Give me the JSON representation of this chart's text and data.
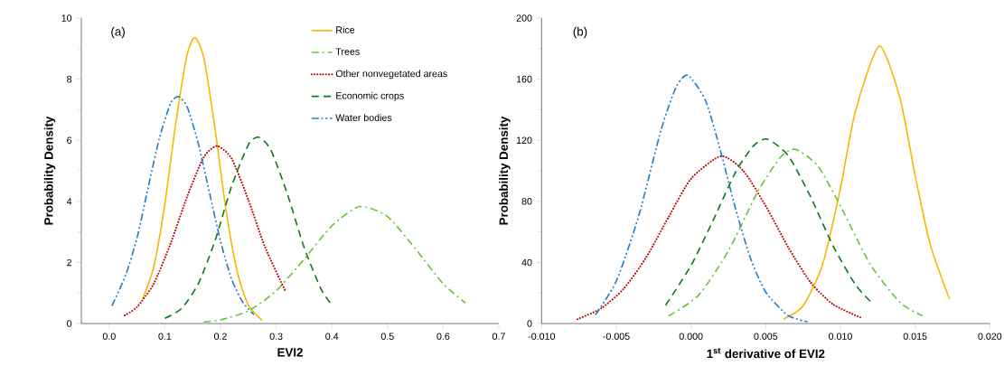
{
  "chart_data": [
    {
      "type": "line",
      "annotations": [
        "(a)"
      ],
      "xlabel": "EVI2",
      "ylabel": "Probability Density",
      "legend": "top right",
      "xlim": [
        -0.05,
        0.7
      ],
      "ylim": [
        0,
        10
      ],
      "xticks": [
        {
          "value": 0,
          "label": "0.0"
        },
        0.1,
        0.2,
        0.3,
        0.4,
        0.5,
        0.6,
        0.7
      ],
      "yticks": [
        0,
        2,
        4,
        6,
        8,
        10
      ],
      "series": [
        {
          "name": "Rice",
          "color": "#f5b800",
          "line_style": "solid",
          "x": [
            0.06,
            0.08,
            0.1,
            0.12,
            0.14,
            0.154,
            0.17,
            0.19,
            0.21,
            0.23,
            0.25,
            0.275
          ],
          "values": [
            0.8,
            1.85,
            3.9,
            6.6,
            8.8,
            9.36,
            8.7,
            6.4,
            3.7,
            1.7,
            0.6,
            0.1
          ]
        },
        {
          "name": "Trees",
          "color": "#66c42e",
          "line_style": "dashdot",
          "x": [
            0.17,
            0.2,
            0.25,
            0.3,
            0.35,
            0.4,
            0.45,
            0.5,
            0.55,
            0.6,
            0.64
          ],
          "values": [
            0.05,
            0.12,
            0.41,
            1.07,
            2.1,
            3.2,
            3.83,
            3.5,
            2.45,
            1.3,
            0.68
          ]
        },
        {
          "name": "Other nonvegetated areas",
          "color": "#c00000",
          "line_style": "dotted",
          "x": [
            0.028,
            0.05,
            0.08,
            0.11,
            0.14,
            0.17,
            0.194,
            0.22,
            0.25,
            0.28,
            0.317
          ],
          "values": [
            0.27,
            0.54,
            1.3,
            2.6,
            4.15,
            5.45,
            5.81,
            5.4,
            4.05,
            2.5,
            1.04
          ]
        },
        {
          "name": "Economic crops",
          "color": "#0a7a1a",
          "line_style": "dashed",
          "x": [
            0.1,
            0.13,
            0.16,
            0.19,
            0.22,
            0.25,
            0.268,
            0.29,
            0.32,
            0.35,
            0.38,
            0.4
          ],
          "values": [
            0.17,
            0.49,
            1.3,
            2.7,
            4.5,
            5.85,
            6.1,
            5.7,
            4.25,
            2.5,
            1.15,
            0.6
          ]
        },
        {
          "name": "Water bodies",
          "color": "#1a7fc8",
          "line_style": "dashdotdot",
          "x": [
            0.005,
            0.03,
            0.05,
            0.07,
            0.09,
            0.11,
            0.124,
            0.14,
            0.16,
            0.18,
            0.2,
            0.22,
            0.24,
            0.26
          ],
          "values": [
            0.58,
            1.6,
            2.8,
            4.45,
            6.05,
            7.2,
            7.43,
            7.1,
            5.9,
            4.3,
            2.7,
            1.45,
            0.7,
            0.29
          ]
        }
      ]
    },
    {
      "type": "line",
      "annotations": [
        "(b)"
      ],
      "xlabel": "1$^{st}$ derivative of EVI2",
      "ylabel": "Probability Density",
      "xlim": [
        -0.01,
        0.02
      ],
      "ylim": [
        0,
        200
      ],
      "xticks": [
        {
          "value": -0.01,
          "label": "-0.010"
        },
        {
          "value": -0.005,
          "label": "-0.005"
        },
        {
          "value": 0,
          "label": "0.000"
        },
        {
          "value": 0.005,
          "label": "0.005"
        },
        {
          "value": 0.01,
          "label": "0.010"
        },
        {
          "value": 0.015,
          "label": "0.015"
        },
        {
          "value": 0.02,
          "label": "0.020"
        }
      ],
      "yticks": [
        0,
        40,
        80,
        120,
        160,
        200
      ],
      "series": [
        {
          "color": "#f5b800",
          "line_style": "solid",
          "x": [
            0.0062,
            0.0075,
            0.0088,
            0.01,
            0.011,
            0.0126,
            0.014,
            0.015,
            0.016,
            0.0173
          ],
          "values": [
            3,
            11.5,
            38.5,
            88.5,
            139,
            181.7,
            147,
            97,
            52,
            16
          ]
        },
        {
          "color": "#66c42e",
          "line_style": "dashdot",
          "x": [
            -0.0015,
            0.0005,
            0.0025,
            0.0045,
            0.006,
            0.007,
            0.0085,
            0.01,
            0.012,
            0.014,
            0.0155
          ],
          "values": [
            5,
            18.4,
            47.6,
            86.9,
            109,
            114,
            103,
            77,
            38.7,
            13.7,
            5
          ]
        },
        {
          "color": "#c00000",
          "line_style": "dotted",
          "x": [
            -0.0076,
            -0.006,
            -0.0045,
            -0.003,
            -0.0015,
            0,
            0.002,
            0.0035,
            0.005,
            0.0065,
            0.008,
            0.0095,
            0.0114
          ],
          "values": [
            2.8,
            10,
            22.8,
            43.3,
            69.7,
            94.8,
            109.6,
            100,
            77,
            50,
            27,
            12.6,
            3.7
          ]
        },
        {
          "color": "#0a7a1a",
          "line_style": "dashed",
          "x": [
            -0.0017,
            0,
            0.0015,
            0.003,
            0.0042,
            0.0051,
            0.0065,
            0.008,
            0.0095,
            0.011,
            0.0121
          ],
          "values": [
            12,
            38,
            68,
            99.5,
            116.5,
            120.7,
            110,
            83,
            51,
            25.5,
            13.6
          ]
        },
        {
          "color": "#1a7fc8",
          "line_style": "dashdotdot",
          "x": [
            -0.0064,
            -0.005,
            -0.0035,
            -0.002,
            -0.001,
            -0.0002,
            0.001,
            0.002,
            0.003,
            0.004,
            0.005,
            0.0065,
            0.0078
          ],
          "values": [
            5.7,
            27.8,
            70.5,
            127,
            154.7,
            162.5,
            145.4,
            112,
            74.4,
            42.3,
            20.6,
            5.2,
            1.2
          ]
        }
      ]
    }
  ]
}
